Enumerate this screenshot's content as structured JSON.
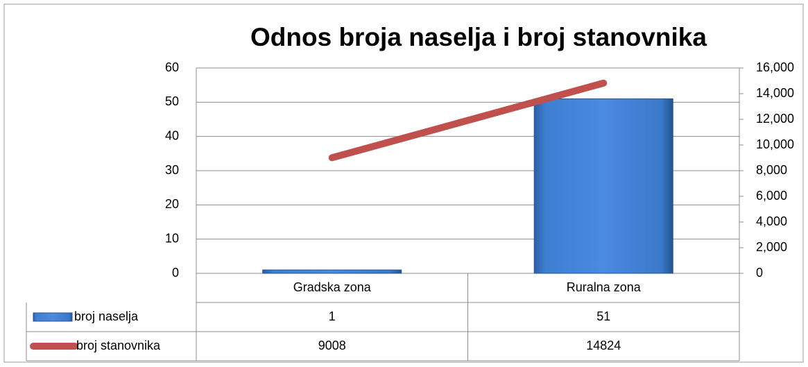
{
  "chart_data": {
    "type": "bar",
    "title": "Odnos broja naselja i broj stanovnika",
    "categories": [
      "Gradska zona",
      "Ruralna zona"
    ],
    "series": [
      {
        "name": "broj naselja",
        "type": "bar",
        "color": "#3f7fd1",
        "values": [
          1,
          51
        ]
      },
      {
        "name": "broj stanovnika",
        "type": "line",
        "axis": "y2",
        "color": "#c0504d",
        "values": [
          9008,
          14824
        ]
      }
    ],
    "ylim": [
      0,
      60
    ],
    "yticks": [
      0,
      10,
      20,
      30,
      40,
      50,
      60
    ],
    "y2lim": [
      0,
      16000
    ],
    "y2ticks": [
      0,
      {
        "value": 2000,
        "label": "2,000"
      },
      {
        "value": 4000,
        "label": "4,000"
      },
      {
        "value": 6000,
        "label": "6,000"
      },
      {
        "value": 8000,
        "label": "8,000"
      },
      {
        "value": 10000,
        "label": "10,000"
      },
      {
        "value": 12000,
        "label": "12,000"
      },
      {
        "value": 14000,
        "label": "14,000"
      },
      {
        "value": 16000,
        "label": "16,000"
      }
    ],
    "grid": true,
    "legend": "data-table"
  }
}
